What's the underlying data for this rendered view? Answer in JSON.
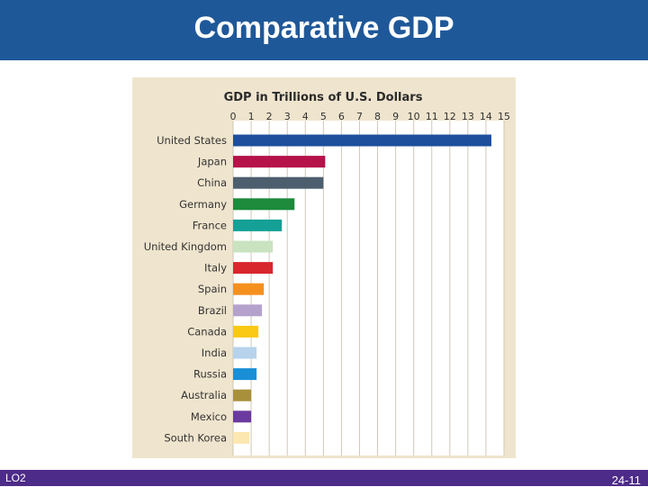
{
  "slide": {
    "title": "Comparative GDP",
    "footer_left": "LO2",
    "page_number": "24-11"
  },
  "colors": {
    "header": "#1f5899",
    "footer": "#4d2b88",
    "panel": "#efe4cd"
  },
  "chart_data": {
    "type": "bar",
    "orientation": "horizontal",
    "title": "GDP in Trillions of U.S. Dollars",
    "xlim": [
      0,
      15
    ],
    "xticks": [
      0,
      1,
      2,
      3,
      4,
      5,
      6,
      7,
      8,
      9,
      10,
      11,
      12,
      13,
      14,
      15
    ],
    "grid": true,
    "categories": [
      "United States",
      "Japan",
      "China",
      "Germany",
      "France",
      "United Kingdom",
      "Italy",
      "Spain",
      "Brazil",
      "Canada",
      "India",
      "Russia",
      "Australia",
      "Mexico",
      "South Korea"
    ],
    "values": [
      14.3,
      5.1,
      5.0,
      3.4,
      2.7,
      2.2,
      2.2,
      1.7,
      1.6,
      1.4,
      1.3,
      1.3,
      1.0,
      1.0,
      0.9
    ],
    "bar_colors": [
      "#1d4f9c",
      "#b5124a",
      "#4d5f6e",
      "#1d8a3c",
      "#14a096",
      "#c9e3c0",
      "#d9272e",
      "#f5901f",
      "#b5a2cc",
      "#f9c814",
      "#b7d3ec",
      "#1a8fd6",
      "#a88f3a",
      "#6b3aa0",
      "#fde7b0"
    ]
  }
}
